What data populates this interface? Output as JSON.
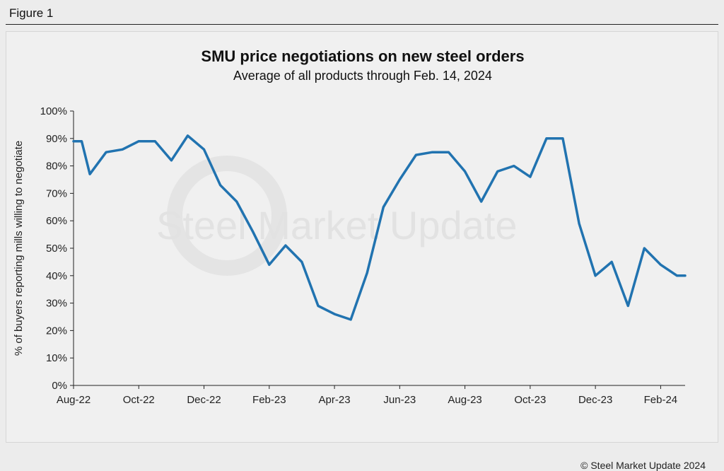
{
  "figure": {
    "label": "Figure 1"
  },
  "footer": {
    "copyright": "© Steel Market Update 2024"
  },
  "watermark": {
    "text": "Steel Market Update"
  },
  "colors": {
    "line": "#2173b0",
    "background": "#f0f0f0",
    "axis": "#222222"
  },
  "chart_data": {
    "type": "line",
    "title": "SMU price negotiations on new steel orders",
    "subtitle": "Average of all products through Feb. 14, 2024",
    "ylabel": "% of buyers reporting mills willing to negotiate",
    "xlabel": "",
    "ylim": [
      0,
      100
    ],
    "yticks": [
      0,
      10,
      20,
      30,
      40,
      50,
      60,
      70,
      80,
      90,
      100
    ],
    "ytick_labels": [
      "0%",
      "10%",
      "20%",
      "30%",
      "40%",
      "50%",
      "60%",
      "70%",
      "80%",
      "90%",
      "100%"
    ],
    "x_range": [
      0,
      37.5
    ],
    "xtick_positions": [
      0,
      4,
      8,
      12,
      16,
      20,
      24,
      28,
      32,
      36
    ],
    "xtick_labels": [
      "Aug-22",
      "Oct-22",
      "Dec-22",
      "Feb-23",
      "Apr-23",
      "Jun-23",
      "Aug-23",
      "Oct-23",
      "Dec-23",
      "Feb-24"
    ],
    "series": [
      {
        "name": "SMU price negotiations",
        "x": [
          0,
          0.5,
          1,
          2,
          3,
          4,
          5,
          6,
          7,
          8,
          9,
          10,
          11,
          12,
          13,
          14,
          15,
          16,
          17,
          18,
          19,
          20,
          21,
          22,
          23,
          24,
          25,
          26,
          27,
          28,
          29,
          30,
          31,
          32,
          33,
          34,
          35,
          36,
          37,
          37.5
        ],
        "values": [
          89,
          89,
          77,
          85,
          86,
          89,
          89,
          82,
          91,
          86,
          73,
          67,
          56,
          44,
          51,
          45,
          29,
          26,
          24,
          41,
          65,
          75,
          84,
          85,
          85,
          78,
          67,
          78,
          80,
          76,
          90,
          90,
          59,
          40,
          45,
          29,
          50,
          44,
          40,
          40
        ]
      }
    ]
  }
}
